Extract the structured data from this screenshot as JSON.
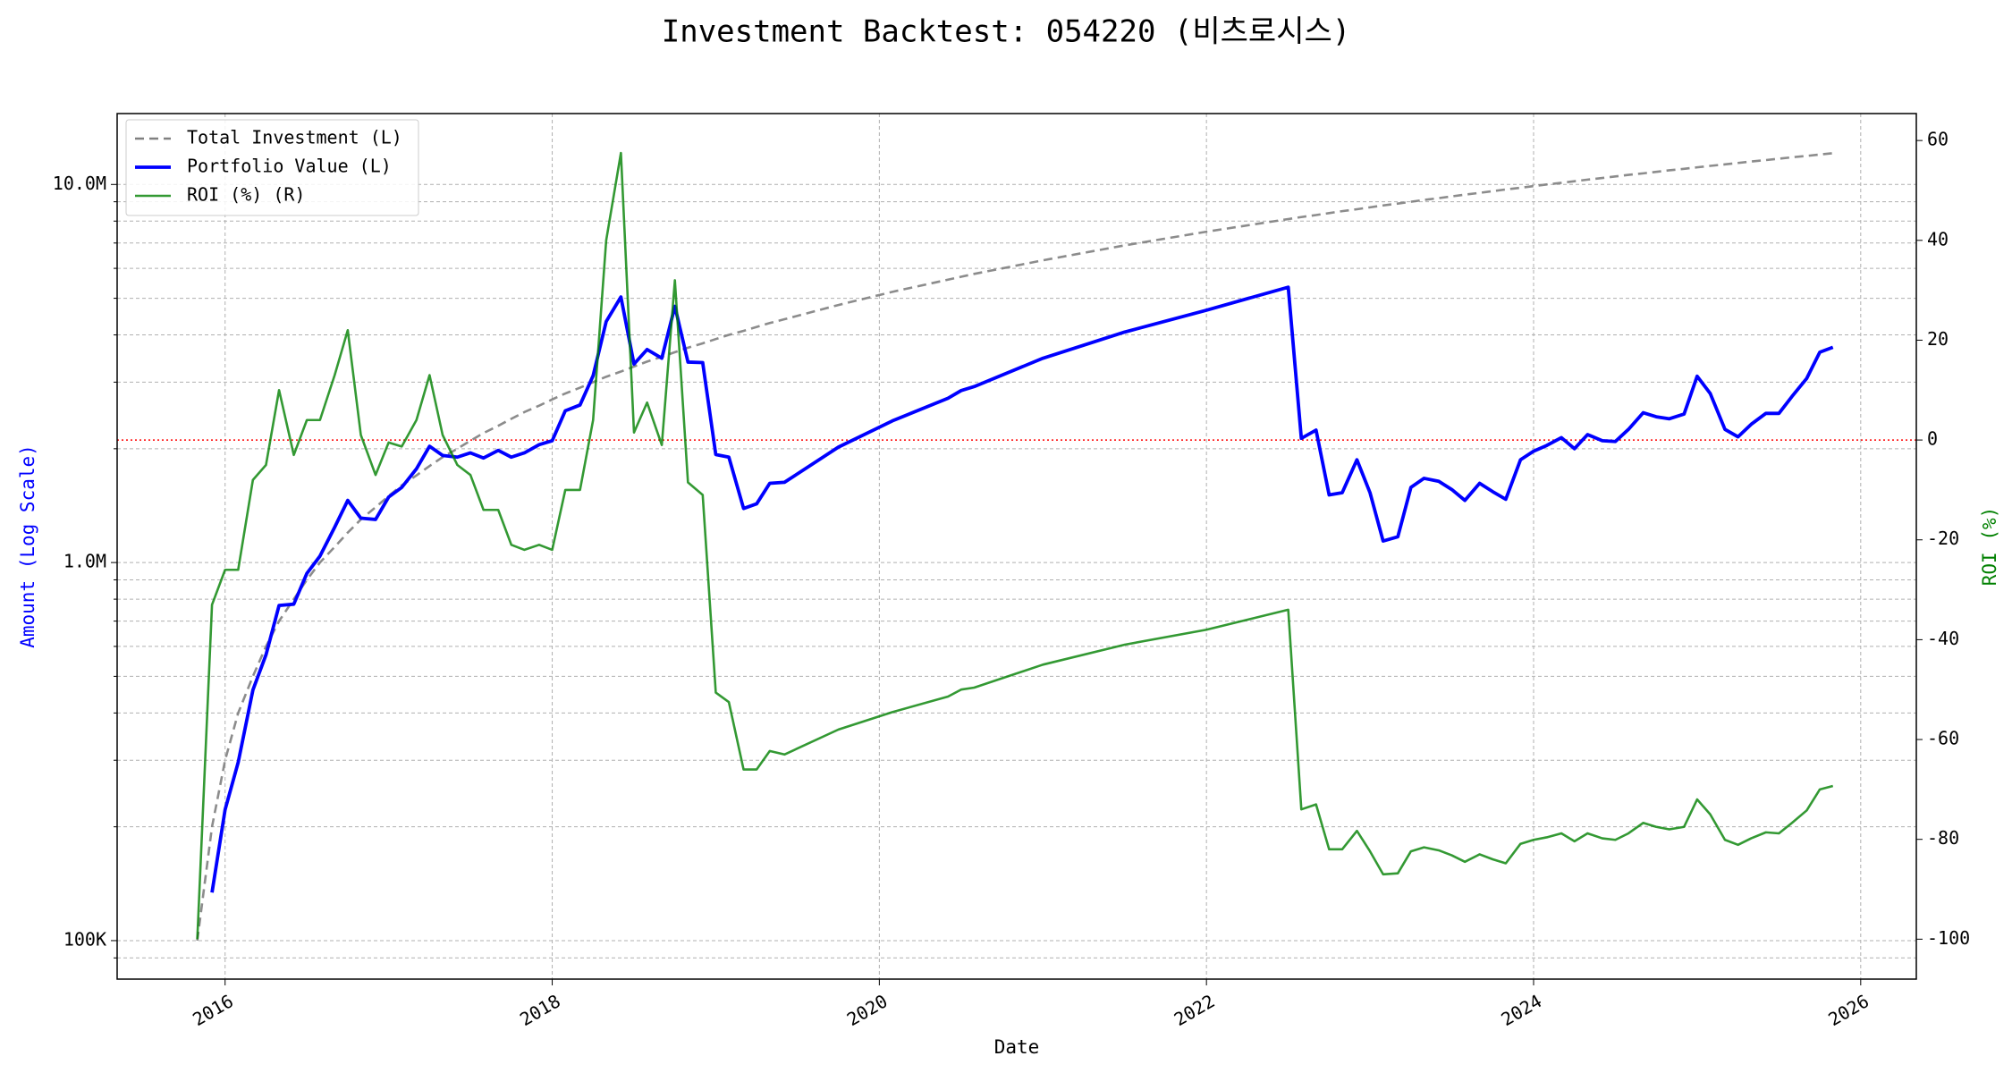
{
  "chart_data": {
    "type": "line",
    "title": "Investment Backtest: 054220 (비츠로시스)",
    "xlabel": "Date",
    "ylabel": "Amount (Log Scale)",
    "y2label": "ROI (%)",
    "ylog": true,
    "grid": true,
    "legend": "upper left",
    "y_label_color": "blue",
    "y2_label_color": "green",
    "reference_line": {
      "value": 0,
      "axis": "y2",
      "color": "red"
    },
    "xlim": [
      2015.34,
      2026.34
    ],
    "xticks": [
      2016,
      2018,
      2020,
      2022,
      2024,
      2026
    ],
    "ylim": [
      79100,
      15400000
    ],
    "yticks": [
      {
        "value": 100000,
        "label": "100K"
      },
      {
        "value": 1000000,
        "label": "1.0M"
      },
      {
        "value": 10000000,
        "label": "10.0M"
      }
    ],
    "yminorticks": [
      90000,
      200000,
      300000,
      400000,
      500000,
      600000,
      700000,
      800000,
      900000,
      2000000,
      3000000,
      4000000,
      5000000,
      6000000,
      7000000,
      8000000,
      9000000
    ],
    "y2lim": [
      -108,
      65.4
    ],
    "y2ticks": [
      -100,
      -80,
      -60,
      -40,
      -20,
      0,
      20,
      40,
      60
    ],
    "x": [
      2015.83,
      2015.92,
      2016.0,
      2016.08,
      2016.17,
      2016.25,
      2016.33,
      2016.42,
      2016.5,
      2016.58,
      2016.67,
      2016.75,
      2016.83,
      2016.92,
      2017.0,
      2017.08,
      2017.17,
      2017.25,
      2017.33,
      2017.42,
      2017.5,
      2017.58,
      2017.67,
      2017.75,
      2017.83,
      2017.92,
      2018.0,
      2018.08,
      2018.17,
      2018.25,
      2018.33,
      2018.42,
      2018.5,
      2018.58,
      2018.67,
      2018.75,
      2018.83,
      2018.92,
      2019.0,
      2019.08,
      2019.17,
      2019.25,
      2019.33,
      2019.42,
      2019.75,
      2020.08,
      2020.42,
      2020.5,
      2020.58,
      2021.0,
      2021.5,
      2022.0,
      2022.5,
      2022.58,
      2022.67,
      2022.75,
      2022.83,
      2022.92,
      2023.0,
      2023.08,
      2023.17,
      2023.25,
      2023.33,
      2023.42,
      2023.5,
      2023.58,
      2023.67,
      2023.75,
      2023.83,
      2023.92,
      2024.0,
      2024.08,
      2024.17,
      2024.25,
      2024.33,
      2024.42,
      2024.5,
      2024.58,
      2024.67,
      2024.75,
      2024.83,
      2024.92,
      2025.0,
      2025.08,
      2025.17,
      2025.25,
      2025.33,
      2025.42,
      2025.5,
      2025.58,
      2025.67,
      2025.75,
      2025.83
    ],
    "series": [
      {
        "name": "Total Investment (L)",
        "color": "gray",
        "style": "dashed",
        "axis": "y",
        "values": [
          100000,
          200000,
          300000,
          400000,
          500000,
          600000,
          700000,
          800000,
          900000,
          1000000,
          1100000,
          1200000,
          1300000,
          1400000,
          1500000,
          1600000,
          1700000,
          1800000,
          1900000,
          2000000,
          2100000,
          2200000,
          2300000,
          2400000,
          2500000,
          2600000,
          2700000,
          2800000,
          2900000,
          3000000,
          3100000,
          3200000,
          3300000,
          3400000,
          3500000,
          3600000,
          3700000,
          3800000,
          3900000,
          4000000,
          4100000,
          4200000,
          4300000,
          4400000,
          4800000,
          5200000,
          5600000,
          5700000,
          5800000,
          6300000,
          6900000,
          7500000,
          8100000,
          8200000,
          8300000,
          8400000,
          8500000,
          8600000,
          8700000,
          8800000,
          8900000,
          9000000,
          9100000,
          9200000,
          9300000,
          9400000,
          9500000,
          9600000,
          9700000,
          9800000,
          9900000,
          10000000,
          10100000,
          10200000,
          10300000,
          10400000,
          10500000,
          10600000,
          10700000,
          10800000,
          10900000,
          11000000,
          11100000,
          11200000,
          11300000,
          11400000,
          11500000,
          11600000,
          11700000,
          11800000,
          11900000,
          12000000,
          12100000
        ]
      },
      {
        "name": "Portfolio Value (L)",
        "color": "blue",
        "style": "solid",
        "axis": "y",
        "values": [
          null,
          134000,
          222000,
          296000,
          460000,
          570000,
          770000,
          776000,
          936000,
          1040000,
          1240000,
          1460000,
          1310000,
          1300000,
          1490000,
          1580000,
          1770000,
          2030000,
          1920000,
          1900000,
          1950000,
          1890000,
          1980000,
          1900000,
          1950000,
          2050000,
          2100000,
          2520000,
          2610000,
          3120000,
          4340000,
          5040000,
          3350000,
          3660000,
          3470000,
          4760000,
          3390000,
          3380000,
          1930000,
          1900000,
          1390000,
          1430000,
          1620000,
          1630000,
          2020000,
          2370000,
          2720000,
          2850000,
          2920000,
          3470000,
          4070000,
          4650000,
          5350000,
          2130000,
          2240000,
          1510000,
          1530000,
          1870000,
          1530000,
          1140000,
          1170000,
          1580000,
          1670000,
          1640000,
          1560000,
          1460000,
          1620000,
          1540000,
          1470000,
          1870000,
          1970000,
          2040000,
          2140000,
          2000000,
          2180000,
          2100000,
          2090000,
          2250000,
          2490000,
          2430000,
          2400000,
          2470000,
          3110000,
          2800000,
          2250000,
          2150000,
          2320000,
          2480000,
          2480000,
          2750000,
          3070000,
          3600000,
          3710000
        ]
      },
      {
        "name": "ROI (%) (R)",
        "color": "green",
        "style": "solid",
        "axis": "y2",
        "values": [
          -100,
          -33,
          -26,
          -26,
          -8,
          -5,
          10,
          -3,
          4,
          4,
          13,
          22,
          1,
          -7,
          -0.5,
          -1.3,
          4,
          13,
          1,
          -5,
          -7,
          -14,
          -14,
          -21,
          -22,
          -21,
          -22,
          -10,
          -10,
          4,
          40,
          57.5,
          1.5,
          7.5,
          -1,
          32,
          -8.5,
          -11,
          -50.6,
          -52.5,
          -66,
          -66,
          -62.3,
          -63,
          -58,
          -54.5,
          -51.4,
          -50,
          -49.6,
          -45,
          -41,
          -38,
          -34,
          -74,
          -73,
          -82,
          -82,
          -78.3,
          -82.4,
          -87,
          -86.8,
          -82.4,
          -81.6,
          -82.2,
          -83.2,
          -84.5,
          -83,
          -84,
          -84.8,
          -80.9,
          -80.1,
          -79.6,
          -78.8,
          -80.4,
          -78.8,
          -79.8,
          -80.1,
          -78.8,
          -76.7,
          -77.5,
          -78,
          -77.5,
          -72,
          -75,
          -80.1,
          -81.1,
          -79.8,
          -78.6,
          -78.8,
          -76.7,
          -74.2,
          -70,
          -69.3
        ]
      }
    ]
  }
}
